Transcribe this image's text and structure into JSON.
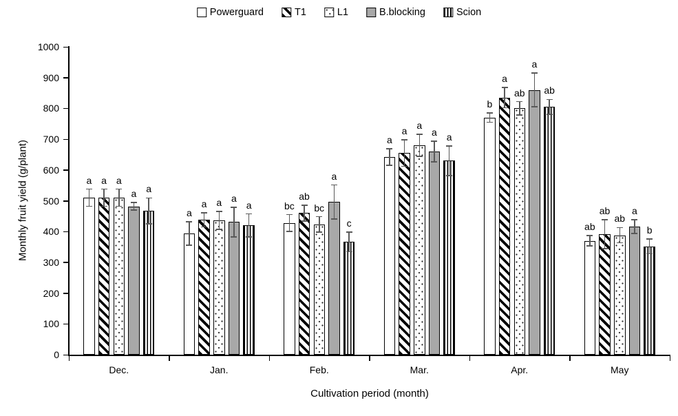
{
  "chart_data": {
    "type": "bar",
    "title": "",
    "xlabel": "Cultivation period (month)",
    "ylabel": "Monthly fruit yield (g/plant)",
    "ylim": [
      0,
      1000
    ],
    "ytick_step": 100,
    "yticks": [
      0,
      100,
      200,
      300,
      400,
      500,
      600,
      700,
      800,
      900,
      1000
    ],
    "categories": [
      "Dec.",
      "Jan.",
      "Feb.",
      "Mar.",
      "Apr.",
      "May"
    ],
    "grid": false,
    "legend_position": "top",
    "error_bars": true,
    "series": [
      {
        "name": "Powerguard",
        "pattern": "plain",
        "values": [
          510,
          394,
          428,
          642,
          770,
          370
        ],
        "errors": [
          28,
          38,
          27,
          27,
          15,
          17
        ],
        "letters": [
          "a",
          "a",
          "bc",
          "a",
          "b",
          "ab"
        ]
      },
      {
        "name": "T1",
        "pattern": "diagonal-stripes",
        "values": [
          510,
          438,
          460,
          655,
          835,
          392
        ],
        "errors": [
          28,
          23,
          26,
          43,
          33,
          47
        ],
        "letters": [
          "a",
          "a",
          "ab",
          "a",
          "a",
          "ab"
        ]
      },
      {
        "name": "L1",
        "pattern": "dots",
        "values": [
          510,
          436,
          423,
          680,
          800,
          388
        ],
        "errors": [
          28,
          29,
          25,
          36,
          22,
          25
        ],
        "letters": [
          "a",
          "a",
          "bc",
          "a",
          "ab",
          "ab"
        ]
      },
      {
        "name": "B.blocking",
        "pattern": "solid-gray",
        "values": [
          482,
          431,
          496,
          660,
          860,
          416
        ],
        "errors": [
          12,
          48,
          55,
          34,
          55,
          22
        ],
        "letters": [
          "a",
          "a",
          "a",
          "a",
          "a",
          "a"
        ]
      },
      {
        "name": "Scion",
        "pattern": "vertical-stripes",
        "values": [
          467,
          420,
          366,
          630,
          805,
          352
        ],
        "errors": [
          42,
          37,
          32,
          48,
          24,
          24
        ],
        "letters": [
          "a",
          "a",
          "c",
          "a",
          "ab",
          "b"
        ]
      }
    ],
    "colors": {
      "background": "#ffffff",
      "bar_border": "#000000",
      "solid_gray_fill": "#a8a8a8",
      "error_bar": "#595959",
      "axis": "#000000",
      "text": "#000000"
    }
  }
}
